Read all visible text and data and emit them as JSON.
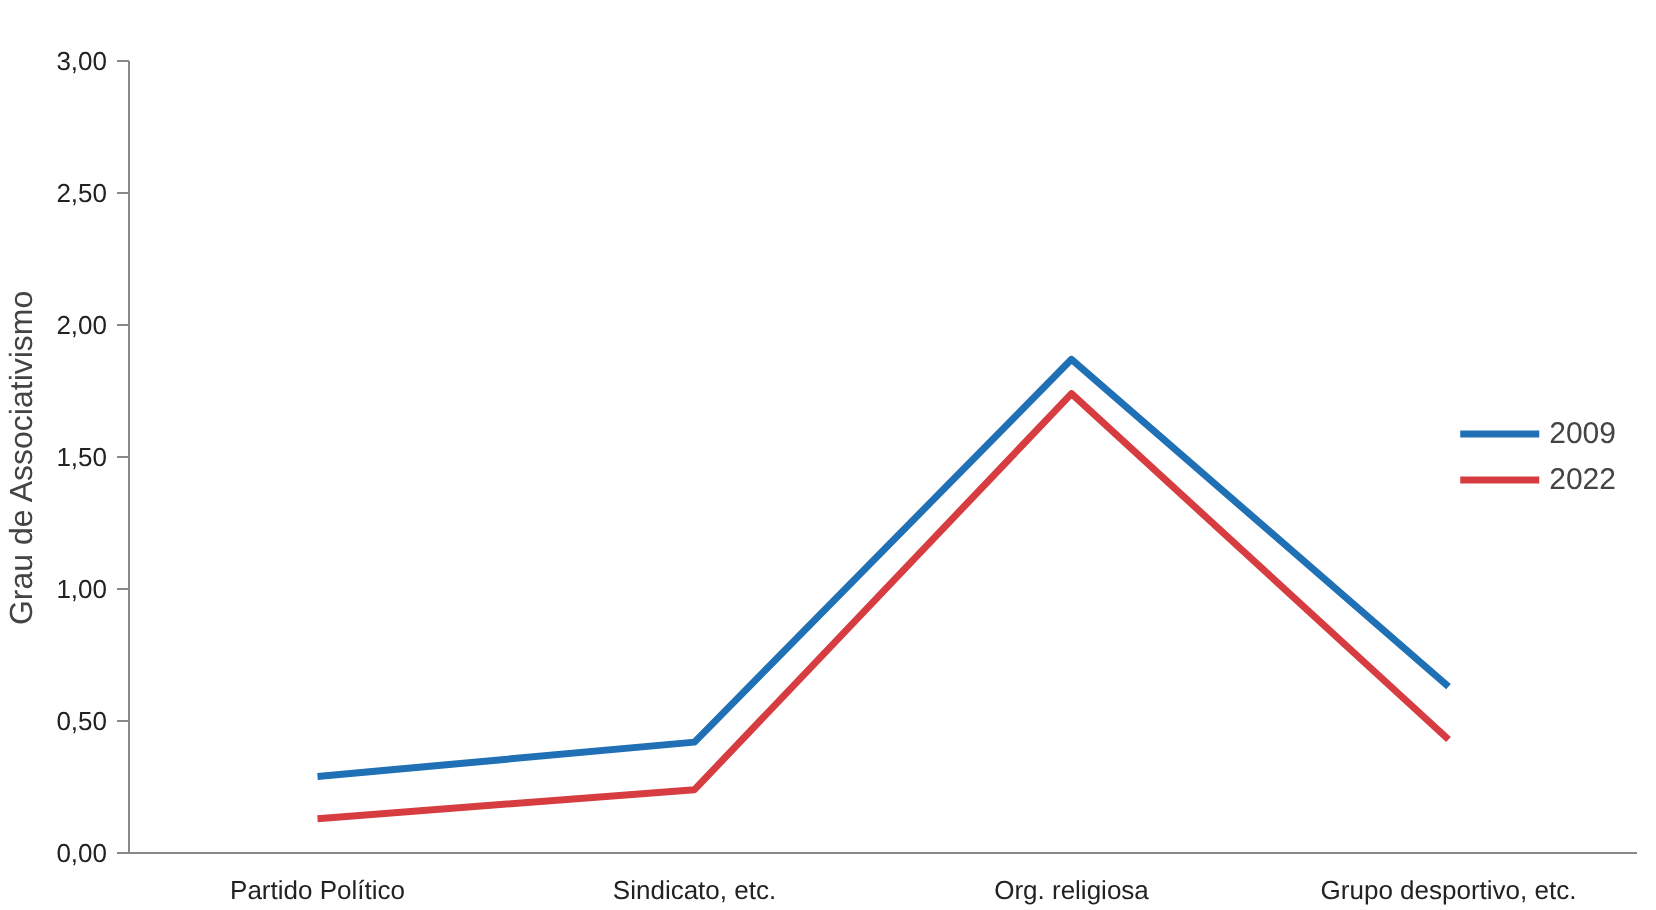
{
  "chart_data": {
    "type": "line",
    "ylabel": "Grau de Associativismo",
    "categories": [
      "Partido Político",
      "Sindicato, etc.",
      "Org. religiosa",
      "Grupo desportivo, etc."
    ],
    "series": [
      {
        "name": "2009",
        "color": "#1f70b4",
        "values": [
          0.29,
          0.42,
          1.87,
          0.63
        ]
      },
      {
        "name": "2022",
        "color": "#d63c40",
        "values": [
          0.13,
          0.24,
          1.74,
          0.43
        ]
      }
    ],
    "ylim": [
      0,
      3
    ],
    "yticks": [
      {
        "value": 0,
        "label": "0,00"
      },
      {
        "value": 0.5,
        "label": "0,50"
      },
      {
        "value": 1,
        "label": "1,00"
      },
      {
        "value": 1.5,
        "label": "1,50"
      },
      {
        "value": 2,
        "label": "2,00"
      },
      {
        "value": 2.5,
        "label": "2,50"
      },
      {
        "value": 3,
        "label": "3,00"
      }
    ],
    "grid": false,
    "legend": "right",
    "marker": "none",
    "line_style": "solid"
  }
}
